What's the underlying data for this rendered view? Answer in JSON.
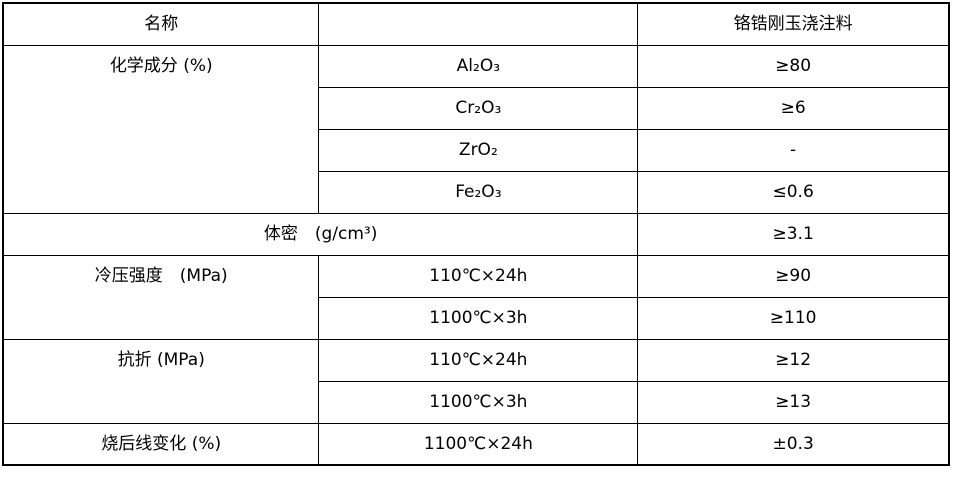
{
  "colors": {
    "background": "#ffffff",
    "border": "#000000",
    "text": "#000000"
  },
  "table": {
    "header": {
      "name_label": "名称",
      "blank": "",
      "product_name": "铬锆刚玉浇注料"
    },
    "chemical_composition": {
      "label": "化学成分 (%)",
      "rows": [
        {
          "component": "Al₂O₃",
          "value": "≥80"
        },
        {
          "component": "Cr₂O₃",
          "value": "≥6"
        },
        {
          "component": "ZrO₂",
          "value": "-"
        },
        {
          "component": "Fe₂O₃",
          "value": "≤0.6"
        }
      ]
    },
    "bulk_density": {
      "label": "体密　(g/cm³)",
      "value": "≥3.1"
    },
    "cold_crushing_strength": {
      "label": "冷压强度　(MPa)",
      "rows": [
        {
          "condition": "110℃×24h",
          "value": "≥90"
        },
        {
          "condition": "1100℃×3h",
          "value": "≥110"
        }
      ]
    },
    "flexural_strength": {
      "label": "抗折 (MPa)",
      "rows": [
        {
          "condition": "110℃×24h",
          "value": "≥12"
        },
        {
          "condition": "1100℃×3h",
          "value": "≥13"
        }
      ]
    },
    "linear_change_after_firing": {
      "label": "烧后线变化 (%)",
      "condition": "1100℃×24h",
      "value": "±0.3"
    }
  }
}
